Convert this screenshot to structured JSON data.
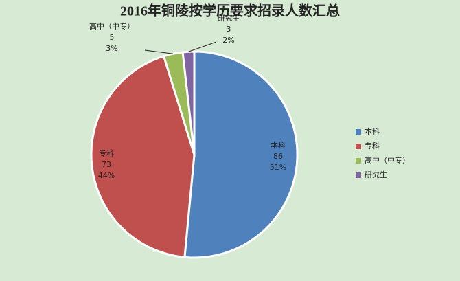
{
  "chart_data": {
    "type": "pie",
    "title": "2016年铜陵按学历要求招录人数汇总",
    "categories": [
      "本科",
      "专科",
      "高中（中专）",
      "研究生"
    ],
    "values": [
      86,
      73,
      5,
      3
    ],
    "percents": [
      51,
      44,
      3,
      2
    ],
    "percent_labels": [
      "51%",
      "44%",
      "3%",
      "2%"
    ],
    "colors": [
      "#4f81bd",
      "#c0504d",
      "#9bbb59",
      "#8064a2"
    ],
    "legend": "right"
  }
}
